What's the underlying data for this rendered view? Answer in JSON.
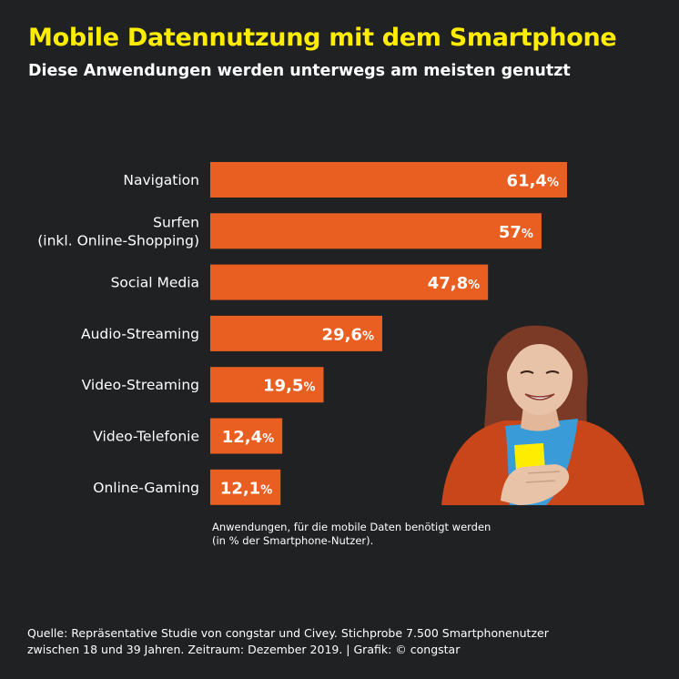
{
  "header": {
    "title": "Mobile Datennutzung mit dem Smartphone",
    "subtitle": "Diese Anwendungen werden unterwegs am meisten genutzt"
  },
  "chart_data": {
    "type": "bar",
    "orientation": "horizontal",
    "title": "Mobile Datennutzung mit dem Smartphone",
    "subtitle": "Diese Anwendungen werden unterwegs am meisten genutzt",
    "categories": [
      [
        "Navigation"
      ],
      [
        "Surfen",
        "(inkl. Online-Shopping)"
      ],
      [
        "Social Media"
      ],
      [
        "Audio-Streaming"
      ],
      [
        "Video-Streaming"
      ],
      [
        "Video-Telefonie"
      ],
      [
        "Online-Gaming"
      ]
    ],
    "values": [
      61.4,
      57,
      47.8,
      29.6,
      19.5,
      12.4,
      12.1
    ],
    "value_labels": [
      "61,4",
      "57",
      "47,8",
      "29,6",
      "19,5",
      "12,4",
      "12,1"
    ],
    "unit": "%",
    "xlabel": "",
    "ylabel": "",
    "xlim": [
      0,
      61.4
    ],
    "grid": false,
    "legend": "none",
    "bar_color": "#e95f22",
    "label_color": "#ffffff",
    "annotation": "Anwendungen, für die mobile Daten benötigt werden (in % der Smartphone-Nutzer)."
  },
  "note": {
    "line1": "Anwendungen, für die mobile Daten benötigt werden",
    "line2": "(in % der Smartphone-Nutzer)."
  },
  "source": {
    "line1": "Quelle: Repräsentative Studie von congstar und Civey. Stichprobe 7.500 Smartphonenutzer",
    "line2": "zwischen 18 und 39 Jahren. Zeitraum: Dezember 2019. |  Grafik: © congstar"
  },
  "illustration": {
    "subject": "woman-with-smartphone",
    "colors": {
      "cardigan": "#c8461a",
      "shirt": "#3a9bd9",
      "phone": "#ffed00",
      "hair": "#7a3a26",
      "skin": "#e8c3a8"
    }
  },
  "colors": {
    "background": "#1f2123",
    "title": "#ffed00",
    "text": "#ffffff",
    "bar": "#e95f22"
  }
}
